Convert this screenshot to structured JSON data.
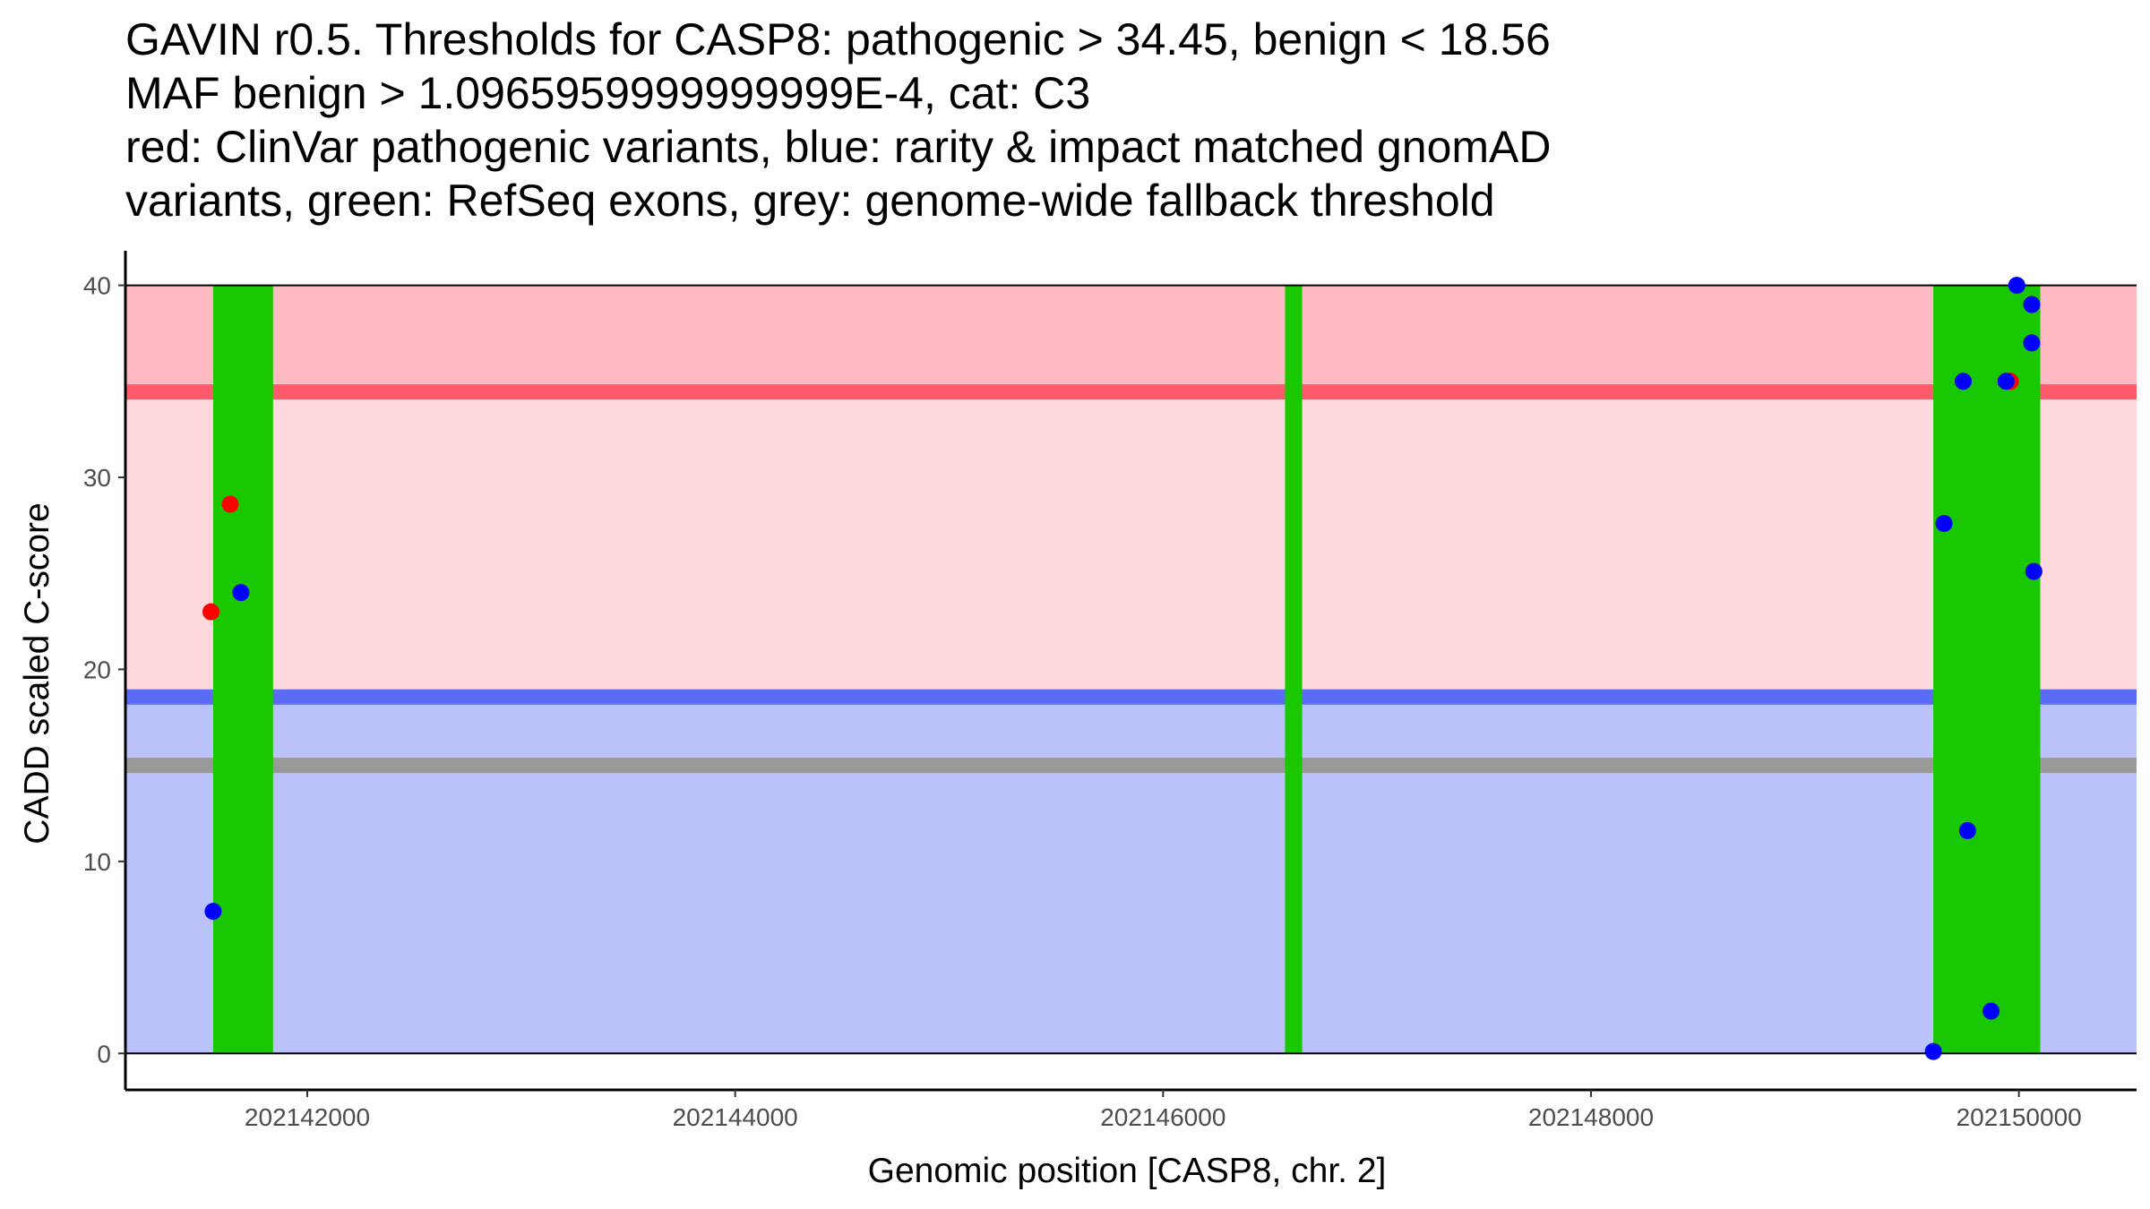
{
  "title_lines": [
    "GAVIN r0.5. Thresholds for CASP8: pathogenic > 34.45, benign < 18.56",
    "MAF benign > 1.0965959999999999E-4, cat: C3",
    "red: ClinVar pathogenic variants, blue: rarity & impact matched gnomAD",
    "variants, green: RefSeq exons, grey: genome-wide fallback threshold"
  ],
  "chart_data": {
    "type": "scatter",
    "xlabel": "Genomic position [CASP8, chr. 2]",
    "ylabel": "CADD scaled C-score",
    "xlim": [
      202141150,
      202150550
    ],
    "ylim": [
      -1.9,
      41.8
    ],
    "x_ticks": [
      202142000,
      202144000,
      202146000,
      202148000,
      202150000
    ],
    "x_tick_labels": [
      "202142000",
      "202144000",
      "202146000",
      "202148000",
      "202150000"
    ],
    "y_ticks": [
      0,
      10,
      20,
      30,
      40
    ],
    "y_tick_labels": [
      "0",
      "10",
      "20",
      "30",
      "40"
    ],
    "thresholds": {
      "pathogenic": 34.45,
      "benign": 18.56,
      "fallback": 15.0
    },
    "band_top": 40,
    "band_bottom": 0,
    "exons": [
      {
        "start": 202141560,
        "end": 202141840
      },
      {
        "start": 202146570,
        "end": 202146650
      },
      {
        "start": 202149600,
        "end": 202150100
      }
    ],
    "series": [
      {
        "name": "ClinVar pathogenic variants",
        "color": "#ff0000",
        "points": [
          {
            "x": 202141550,
            "y": 23.0
          },
          {
            "x": 202141640,
            "y": 28.6
          },
          {
            "x": 202149960,
            "y": 35.0
          }
        ]
      },
      {
        "name": "rarity & impact matched gnomAD variants",
        "color": "#0000ff",
        "points": [
          {
            "x": 202141560,
            "y": 7.4
          },
          {
            "x": 202141690,
            "y": 24.0
          },
          {
            "x": 202149600,
            "y": 0.1
          },
          {
            "x": 202149650,
            "y": 27.6
          },
          {
            "x": 202149740,
            "y": 35.0
          },
          {
            "x": 202149760,
            "y": 11.6
          },
          {
            "x": 202149870,
            "y": 2.2
          },
          {
            "x": 202149940,
            "y": 35.0
          },
          {
            "x": 202149990,
            "y": 40.0
          },
          {
            "x": 202150060,
            "y": 39.0
          },
          {
            "x": 202150060,
            "y": 37.0
          },
          {
            "x": 202150070,
            "y": 25.1
          }
        ]
      }
    ],
    "colors": {
      "pathogenic_zone": "#ffb9c2",
      "vus_zone": "#ffd8dd",
      "benign_zone": "#bbc1fb",
      "pathogenic_line": "#ff5a6a",
      "benign_line": "#5a6bf5",
      "fallback_line": "#999999",
      "exon": "#19c800",
      "axis": "#000000"
    }
  }
}
